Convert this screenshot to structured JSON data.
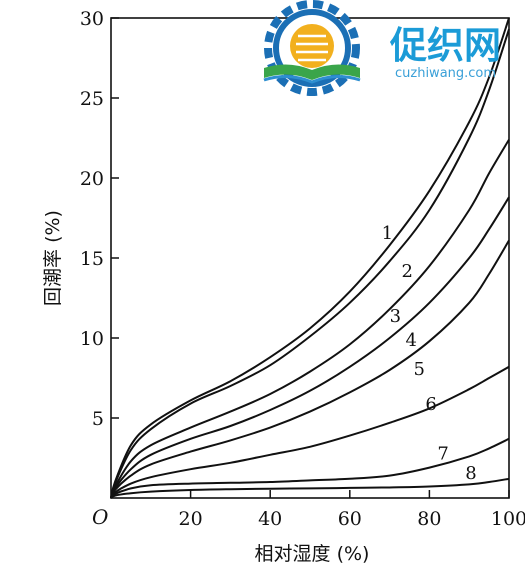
{
  "chart_data": {
    "type": "line",
    "title": "",
    "xlabel": "相对湿度 (%)",
    "ylabel": "回潮率 (%)",
    "origin_label": "O",
    "xlim": [
      0,
      100
    ],
    "ylim": [
      0,
      30
    ],
    "xticks": [
      20,
      40,
      60,
      80,
      100
    ],
    "yticks": [
      5,
      10,
      15,
      20,
      25,
      30
    ],
    "grid": false,
    "series": [
      {
        "name": "1",
        "x": [
          0,
          1,
          5,
          10,
          20,
          30,
          40,
          50,
          60,
          70,
          80,
          90,
          95,
          100
        ],
        "y": [
          0,
          1.0,
          3.3,
          4.6,
          6.1,
          7.3,
          8.8,
          10.6,
          12.9,
          15.8,
          19.2,
          23.5,
          26.3,
          30.0
        ]
      },
      {
        "name": "2",
        "x": [
          0,
          1,
          5,
          10,
          20,
          30,
          40,
          50,
          60,
          70,
          80,
          90,
          95,
          100
        ],
        "y": [
          0,
          0.9,
          3.0,
          4.3,
          5.9,
          7.0,
          8.3,
          10.1,
          12.2,
          14.8,
          18.0,
          22.5,
          25.5,
          29.3
        ]
      },
      {
        "name": "3",
        "x": [
          0,
          1,
          5,
          10,
          20,
          30,
          40,
          50,
          60,
          70,
          80,
          90,
          95,
          100
        ],
        "y": [
          0,
          0.7,
          2.3,
          3.3,
          4.4,
          5.4,
          6.5,
          7.9,
          9.6,
          11.8,
          14.5,
          18.0,
          20.3,
          22.4
        ]
      },
      {
        "name": "4",
        "x": [
          0,
          1,
          5,
          10,
          20,
          30,
          40,
          50,
          60,
          70,
          80,
          90,
          95,
          100
        ],
        "y": [
          0,
          0.6,
          1.8,
          2.7,
          3.7,
          4.5,
          5.5,
          6.7,
          8.2,
          10.0,
          12.2,
          15.0,
          16.8,
          18.8
        ]
      },
      {
        "name": "5",
        "x": [
          0,
          1,
          5,
          10,
          20,
          30,
          40,
          50,
          60,
          70,
          80,
          90,
          95,
          100
        ],
        "y": [
          0,
          0.5,
          1.4,
          2.1,
          2.9,
          3.6,
          4.4,
          5.4,
          6.6,
          8.0,
          9.8,
          12.2,
          14.0,
          16.1
        ]
      },
      {
        "name": "6",
        "x": [
          0,
          1,
          5,
          10,
          20,
          30,
          40,
          50,
          60,
          70,
          80,
          90,
          95,
          100
        ],
        "y": [
          0,
          0.35,
          0.9,
          1.3,
          1.8,
          2.2,
          2.7,
          3.2,
          3.9,
          4.7,
          5.6,
          6.8,
          7.5,
          8.2
        ]
      },
      {
        "name": "7",
        "x": [
          0,
          1,
          5,
          10,
          20,
          30,
          40,
          50,
          60,
          70,
          80,
          90,
          95,
          100
        ],
        "y": [
          0,
          0.25,
          0.6,
          0.8,
          0.9,
          0.95,
          1.0,
          1.1,
          1.2,
          1.4,
          1.9,
          2.6,
          3.1,
          3.7
        ]
      },
      {
        "name": "8",
        "x": [
          0,
          1,
          5,
          10,
          20,
          30,
          40,
          50,
          60,
          70,
          80,
          90,
          95,
          100
        ],
        "y": [
          0,
          0.15,
          0.3,
          0.4,
          0.5,
          0.55,
          0.58,
          0.6,
          0.63,
          0.66,
          0.72,
          0.85,
          1.0,
          1.2
        ]
      }
    ],
    "curve_labels": [
      {
        "text": "1",
        "x": 68,
        "y": 16.2
      },
      {
        "text": "2",
        "x": 73,
        "y": 13.8
      },
      {
        "text": "3",
        "x": 70,
        "y": 11.0
      },
      {
        "text": "4",
        "x": 74,
        "y": 9.5
      },
      {
        "text": "5",
        "x": 76,
        "y": 7.7
      },
      {
        "text": "6",
        "x": 79,
        "y": 5.5
      },
      {
        "text": "7",
        "x": 82,
        "y": 2.4
      },
      {
        "text": "8",
        "x": 89,
        "y": 1.2
      }
    ]
  },
  "watermark": {
    "title": "促织网",
    "url": "cuzhiwang.com",
    "colors": {
      "gear": "#1b6fb5",
      "sun": "#f2b01e",
      "leaf": "#3aa54a",
      "book": "#2e8fd0"
    }
  }
}
